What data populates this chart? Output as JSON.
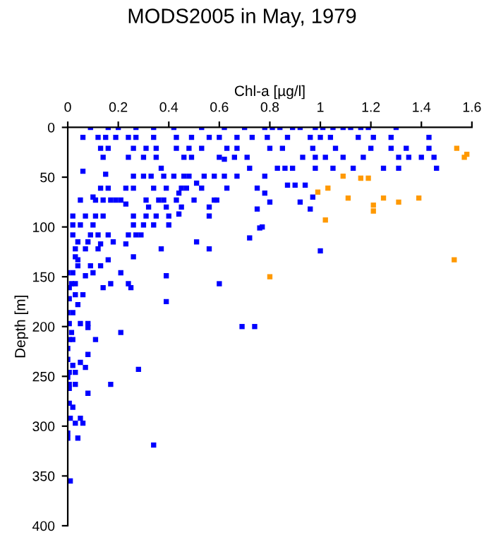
{
  "chart_data": {
    "type": "scatter",
    "title": "MODS2005 in May, 1979",
    "xlabel": "Chl-a [µg/l]",
    "ylabel": "Depth [m]",
    "xlim": [
      0,
      1.6
    ],
    "xticks": [
      0,
      0.2,
      0.4,
      0.6,
      0.8,
      1,
      1.2,
      1.4,
      1.6
    ],
    "ylim": [
      400,
      0
    ],
    "yticks": [
      0,
      50,
      100,
      150,
      200,
      250,
      300,
      350,
      400
    ],
    "grid": false,
    "legend": false,
    "marker": "square",
    "series": [
      {
        "color": "#0000ff",
        "x": [
          0.09,
          0.16,
          0.2,
          0.27,
          0.34,
          0.42,
          0.53,
          0.62,
          0.7,
          0.78,
          0.81,
          0.84,
          0.89,
          0.92,
          0.98,
          1.01,
          1.05,
          1.09,
          1.12,
          1.16,
          1.19,
          1.3,
          0.06,
          0.12,
          0.15,
          0.19,
          0.24,
          0.27,
          0.34,
          0.43,
          0.49,
          0.56,
          0.6,
          0.67,
          0.73,
          0.79,
          0.87,
          0.96,
          1.0,
          1.04,
          1.15,
          1.21,
          1.28,
          1.43,
          0.13,
          0.16,
          0.26,
          0.31,
          0.35,
          0.43,
          0.48,
          0.53,
          0.63,
          0.67,
          0.8,
          0.85,
          0.97,
          1.06,
          1.2,
          1.28,
          1.34,
          1.43,
          0.14,
          0.24,
          0.3,
          0.35,
          0.46,
          0.49,
          0.6,
          0.66,
          0.71,
          0.93,
          0.98,
          1.02,
          1.09,
          1.17,
          1.31,
          1.35,
          1.4,
          1.45,
          0.83,
          0.86,
          0.89,
          0.98,
          1.05,
          1.13,
          1.25,
          1.31,
          1.46,
          0.37,
          0.62,
          0.06,
          0.72,
          0.26,
          0.3,
          0.33,
          0.38,
          0.42,
          0.46,
          0.48,
          0.54,
          0.58,
          0.62,
          0.67,
          0.78,
          0.15,
          0.51,
          0.13,
          0.16,
          0.23,
          0.26,
          0.34,
          0.39,
          0.45,
          0.47,
          0.53,
          0.63,
          0.75,
          0.8,
          0.87,
          0.9,
          0.94,
          0.05,
          0.1,
          0.11,
          0.14,
          0.17,
          0.19,
          0.21,
          0.31,
          0.36,
          0.38,
          0.43,
          0.5,
          0.58,
          0.59,
          0.44,
          0.78,
          0.97,
          0.92,
          0.75,
          0.96,
          0.32,
          0.39,
          0.45,
          0.56,
          0.23,
          0.02,
          0.07,
          0.11,
          0.14,
          0.26,
          0.31,
          0.35,
          0.4,
          0.56,
          0.44,
          0.77,
          0.02,
          0.05,
          0.1,
          0.26,
          0.3,
          0.34,
          0.4,
          0.76,
          0.02,
          0.09,
          0.12,
          0.16,
          0.24,
          0.27,
          0.29,
          0.72,
          0.04,
          0.08,
          0.18,
          0.51,
          0.03,
          0.07,
          0.12,
          0.37,
          0.56,
          1.0,
          0.13,
          0.23,
          0.03,
          0.26,
          0.04,
          0.16,
          0.04,
          0.09,
          0.13,
          0.0,
          0.02,
          0.1,
          0.21,
          0.07,
          0.39,
          0.015,
          0.03,
          0.17,
          0.24,
          0.6,
          0.006,
          0.14,
          0.25,
          0.03,
          0.06,
          0.006,
          0.39,
          0.04,
          0.0,
          0.02,
          0.006,
          0.05,
          0.08,
          0.69,
          0.74,
          0.08,
          0.015,
          0.21,
          0.006,
          0.02,
          0.11,
          0.0,
          0.08,
          0.0,
          0.05,
          0.02,
          0.07,
          0.28,
          0.006,
          0.03,
          0.0,
          0.006,
          0.03,
          0.17,
          0.006,
          0.08,
          0.006,
          0.02,
          0.01,
          0.05,
          0.03,
          0.06,
          0.0,
          0.0,
          0.04,
          0.34,
          0.01
        ],
        "values": [
          0,
          0,
          0,
          0,
          0,
          0,
          0,
          0,
          0,
          0,
          0,
          0,
          0,
          0,
          0,
          0,
          0,
          0,
          0,
          0,
          0,
          0,
          10,
          10,
          10,
          10,
          10,
          10,
          10,
          10,
          10,
          10,
          10,
          10,
          10,
          10,
          10,
          10,
          10,
          10,
          10,
          10,
          10,
          10,
          21,
          21,
          21,
          21,
          21,
          21,
          21,
          21,
          21,
          21,
          21,
          21,
          21,
          21,
          21,
          21,
          21,
          21,
          30,
          30,
          30,
          30,
          30,
          30,
          30,
          30,
          30,
          30,
          30,
          30,
          30,
          30,
          30,
          30,
          30,
          30,
          41,
          41,
          41,
          41,
          41,
          41,
          41,
          41,
          41,
          41,
          32,
          44,
          41,
          49,
          49,
          49,
          49,
          49,
          49,
          49,
          49,
          49,
          49,
          49,
          49,
          47,
          56,
          61,
          61,
          61,
          61,
          61,
          61,
          61,
          61,
          61,
          61,
          61,
          75,
          58,
          58,
          58,
          73,
          70,
          73,
          73,
          73,
          73,
          73,
          73,
          73,
          73,
          73,
          73,
          73,
          73,
          66,
          66,
          70,
          75,
          82,
          82,
          80,
          80,
          80,
          80,
          77,
          89,
          89,
          89,
          89,
          89,
          89,
          89,
          89,
          89,
          87,
          100,
          98,
          98,
          98,
          98,
          98,
          98,
          98,
          101,
          108,
          108,
          108,
          108,
          108,
          108,
          108,
          111,
          115,
          115,
          115,
          115,
          122,
          122,
          122,
          122,
          122,
          124,
          117,
          117,
          130,
          130,
          133,
          133,
          139,
          139,
          139,
          146,
          146,
          146,
          146,
          149,
          149,
          157,
          157,
          157,
          157,
          157,
          161,
          161,
          161,
          168,
          168,
          172,
          175,
          178,
          186,
          186,
          197,
          197,
          197,
          200,
          200,
          201,
          206,
          206,
          213,
          213,
          213,
          222,
          228,
          233,
          236,
          239,
          241,
          243,
          246,
          246,
          251,
          258,
          258,
          258,
          262,
          267,
          277,
          281,
          292,
          292,
          297,
          297,
          307,
          312,
          312,
          319,
          355
        ]
      },
      {
        "color": "#ff9900",
        "x": [
          1.54,
          1.57,
          1.58,
          1.09,
          1.16,
          1.19,
          1.03,
          0.99,
          1.11,
          1.25,
          1.39,
          1.31,
          1.21,
          1.21,
          1.02,
          0.8,
          1.53
        ],
        "values": [
          21,
          30,
          27,
          49,
          51,
          51,
          61,
          65,
          71,
          71,
          71,
          75,
          78,
          84,
          93,
          150,
          133
        ]
      }
    ]
  }
}
